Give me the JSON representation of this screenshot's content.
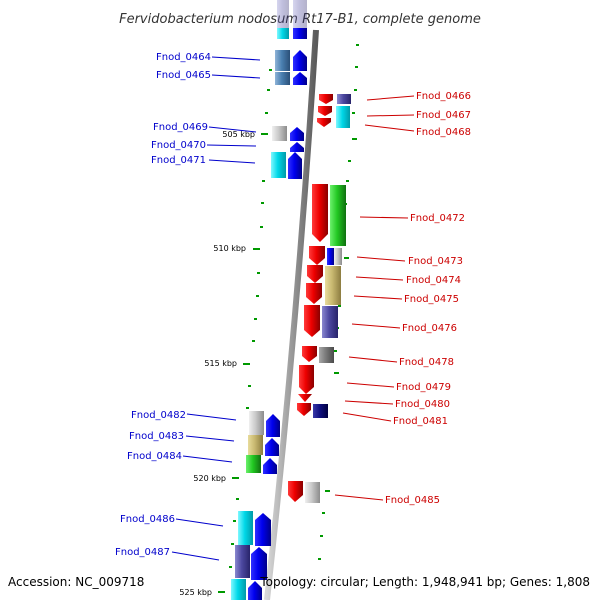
{
  "title": "Fervidobacterium nodosum Rt17-B1, complete genome",
  "accession": "Accession: NC_009718",
  "topology": "Topology: circular; Length: 1,948,941 bp; Genes: 1,808",
  "colors": {
    "backbone": "#999999",
    "left_label": "#0000cc",
    "right_label": "#cc0000",
    "tick": "#009900",
    "forward_gene": "#0000ee",
    "reverse_gene": "#ee0000"
  },
  "scale": {
    "unit": "kbp",
    "ticks": [
      {
        "value": 505,
        "label": "505 kbp"
      },
      {
        "value": 510,
        "label": "510 kbp"
      },
      {
        "value": 515,
        "label": "515 kbp"
      },
      {
        "value": 520,
        "label": "520 kbp"
      },
      {
        "value": 525,
        "label": "525 kbp"
      }
    ]
  },
  "left_genes": [
    {
      "name": "Fnod_0464",
      "strand": "+"
    },
    {
      "name": "Fnod_0465",
      "strand": "+"
    },
    {
      "name": "Fnod_0469",
      "strand": "+"
    },
    {
      "name": "Fnod_0470",
      "strand": "+"
    },
    {
      "name": "Fnod_0471",
      "strand": "+"
    },
    {
      "name": "Fnod_0482",
      "strand": "+"
    },
    {
      "name": "Fnod_0483",
      "strand": "+"
    },
    {
      "name": "Fnod_0484",
      "strand": "+"
    },
    {
      "name": "Fnod_0486",
      "strand": "+"
    },
    {
      "name": "Fnod_0487",
      "strand": "+"
    }
  ],
  "right_genes": [
    {
      "name": "Fnod_0466",
      "strand": "-"
    },
    {
      "name": "Fnod_0467",
      "strand": "-"
    },
    {
      "name": "Fnod_0468",
      "strand": "-"
    },
    {
      "name": "Fnod_0472",
      "strand": "-"
    },
    {
      "name": "Fnod_0473",
      "strand": "-"
    },
    {
      "name": "Fnod_0474",
      "strand": "-"
    },
    {
      "name": "Fnod_0475",
      "strand": "-"
    },
    {
      "name": "Fnod_0476",
      "strand": "-"
    },
    {
      "name": "Fnod_0478",
      "strand": "-"
    },
    {
      "name": "Fnod_0479",
      "strand": "-"
    },
    {
      "name": "Fnod_0480",
      "strand": "-"
    },
    {
      "name": "Fnod_0481",
      "strand": "-"
    },
    {
      "name": "Fnod_0485",
      "strand": "-"
    }
  ]
}
